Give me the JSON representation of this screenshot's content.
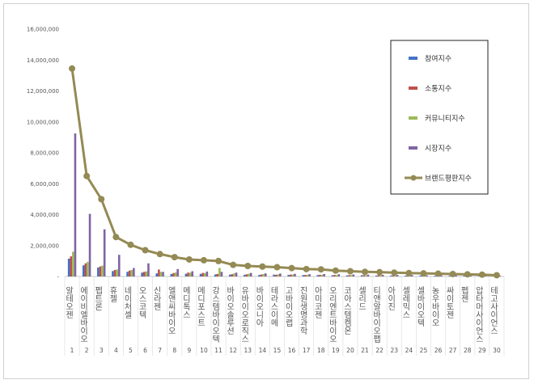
{
  "chart_data": {
    "type": "bar",
    "title": "",
    "xlabel": "",
    "ylabel": "",
    "ylim": [
      0,
      16000000
    ],
    "yticks": [
      0,
      2000000,
      4000000,
      6000000,
      8000000,
      10000000,
      12000000,
      14000000,
      16000000
    ],
    "ytick_labels": [
      "-",
      "2,000,000",
      "4,000,000",
      "6,000,000",
      "8,000,000",
      "10,000,000",
      "12,000,000",
      "14,000,000",
      "16,000,000"
    ],
    "grid": false,
    "legend_position": "right",
    "categories": [
      "알테오젠",
      "에이비엘바이오",
      "펩트론",
      "휴젤",
      "네이처셀",
      "오스코텍",
      "신라젠",
      "엘앤씨바이오",
      "메디톡스",
      "메디포스트",
      "강스템바이오텍",
      "바이오솔루션",
      "유바이오로직스",
      "바이오니아",
      "테라스이메",
      "고바이오랩",
      "진원생명과학",
      "아미코젠",
      "오리엔트바이오",
      "코아스템켐온",
      "셀리드",
      "티앤알바이오팹",
      "아이진",
      "셀레믹스",
      "셀바이오텍",
      "농우바이오",
      "싸이토젠",
      "펩젠",
      "압타머사이언스",
      "테고사이언스"
    ],
    "ranks": [
      "1",
      "2",
      "3",
      "4",
      "5",
      "6",
      "7",
      "8",
      "9",
      "10",
      "11",
      "12",
      "13",
      "14",
      "15",
      "16",
      "17",
      "18",
      "19",
      "20",
      "21",
      "22",
      "23",
      "24",
      "25",
      "26",
      "27",
      "28",
      "29",
      "30"
    ],
    "series": [
      {
        "name": "참여지수",
        "type": "bar",
        "color": "#4472c4",
        "values": [
          1150000,
          720000,
          580000,
          350000,
          300000,
          250000,
          200000,
          160000,
          180000,
          170000,
          130000,
          120000,
          110000,
          100000,
          120000,
          100000,
          90000,
          90000,
          80000,
          70000,
          80000,
          60000,
          60000,
          60000,
          60000,
          50000,
          50000,
          50000,
          40000,
          40000
        ]
      },
      {
        "name": "소통지수",
        "type": "bar",
        "color": "#c0504d",
        "values": [
          1300000,
          850000,
          650000,
          420000,
          380000,
          300000,
          450000,
          220000,
          250000,
          230000,
          160000,
          150000,
          140000,
          130000,
          110000,
          120000,
          100000,
          110000,
          100000,
          90000,
          80000,
          80000,
          70000,
          60000,
          60000,
          60000,
          50000,
          50000,
          50000,
          40000
        ]
      },
      {
        "name": "커뮤니티지수",
        "type": "bar",
        "color": "#9bbb59",
        "values": [
          1600000,
          950000,
          700000,
          450000,
          420000,
          330000,
          300000,
          260000,
          250000,
          220000,
          550000,
          200000,
          180000,
          160000,
          140000,
          130000,
          110000,
          110000,
          90000,
          90000,
          80000,
          80000,
          70000,
          70000,
          60000,
          60000,
          50000,
          50000,
          50000,
          40000
        ]
      },
      {
        "name": "시장지수",
        "type": "bar",
        "color": "#8064a2",
        "values": [
          9250000,
          4050000,
          3050000,
          1400000,
          550000,
          850000,
          300000,
          480000,
          340000,
          320000,
          300000,
          250000,
          230000,
          200000,
          190000,
          170000,
          150000,
          160000,
          140000,
          130000,
          120000,
          110000,
          100000,
          90000,
          80000,
          80000,
          70000,
          60000,
          60000,
          50000
        ]
      },
      {
        "name": "브랜드평판지수",
        "type": "line",
        "color": "#948a54",
        "values": [
          13450000,
          6500000,
          5000000,
          2550000,
          2050000,
          1700000,
          1450000,
          1250000,
          1100000,
          1050000,
          1000000,
          750000,
          680000,
          640000,
          600000,
          540000,
          480000,
          460000,
          380000,
          340000,
          300000,
          280000,
          250000,
          220000,
          200000,
          180000,
          160000,
          140000,
          120000,
          80000
        ]
      }
    ]
  }
}
